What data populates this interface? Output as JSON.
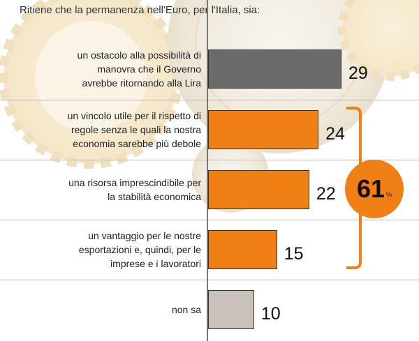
{
  "title": "Ritiene che la permanenza nell'Euro, per l'Italia, sia:",
  "chart_data": {
    "type": "bar",
    "orientation": "horizontal",
    "categories": [
      "un ostacolo alla possibilità di manovra che il Governo avrebbe ritornando alla Lira",
      "un vincolo utile per il rispetto di regole senza le quali la nostra economia sarebbe più debole",
      "una risorsa imprescindibile per la stabilità economica",
      "un vantaggio per le nostre esportazioni e, quindi, per le imprese e i lavoratori",
      "non sa"
    ],
    "category_lines": [
      [
        "un ostacolo alla possibilità di",
        "manovra che il Governo",
        "avrebbe ritornando alla Lira"
      ],
      [
        "un vincolo utile per il rispetto di",
        "regole senza le quali la nostra",
        "economia sarebbe più debole"
      ],
      [
        "una risorsa imprescindibile per",
        "la stabilità economica"
      ],
      [
        "un vantaggio per le nostre",
        "esportazioni e, quindi, per le",
        "imprese e i lavoratori"
      ],
      [
        "non sa"
      ]
    ],
    "values": [
      29,
      24,
      22,
      15,
      10
    ],
    "bar_colors": [
      "#6a6a6a",
      "#f07f16",
      "#f07f16",
      "#f07f16",
      "#c9c2ba"
    ],
    "xlim": [
      0,
      40
    ],
    "grid": false,
    "annotation": {
      "value": "61",
      "unit": "%",
      "groups_categories": [
        1,
        2,
        3
      ],
      "color": "#f07f16"
    }
  }
}
